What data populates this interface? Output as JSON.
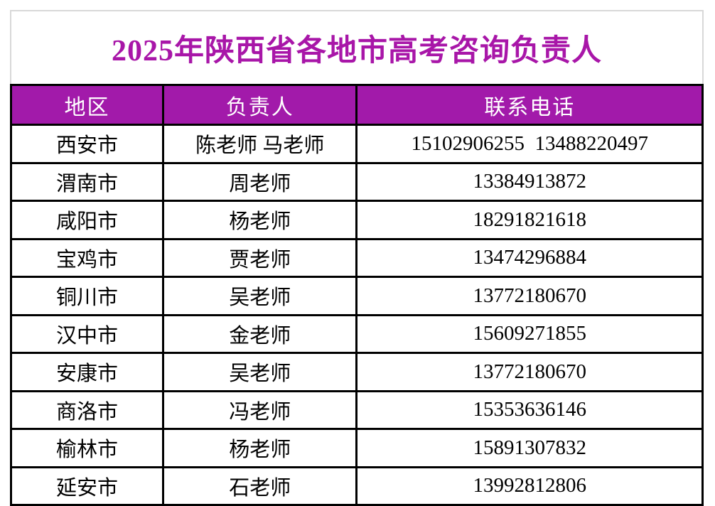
{
  "title": "2025年陕西省各地市高考咨询负责人",
  "colors": {
    "title_text": "#a816a8",
    "header_background": "#a21aaa",
    "header_text": "#ffffff",
    "grid_border": "#000000",
    "title_border": "#d8d8d8",
    "page_background": "#ffffff"
  },
  "table": {
    "columns": [
      {
        "key": "region",
        "label": "地区"
      },
      {
        "key": "person",
        "label": "负责人"
      },
      {
        "key": "phone",
        "label": "联系电话"
      }
    ],
    "rows": [
      {
        "region": "西安市",
        "person": "陈老师 马老师",
        "phone": "15102906255  13488220497"
      },
      {
        "region": "渭南市",
        "person": "周老师",
        "phone": "13384913872"
      },
      {
        "region": "咸阳市",
        "person": "杨老师",
        "phone": "18291821618"
      },
      {
        "region": "宝鸡市",
        "person": "贾老师",
        "phone": "13474296884"
      },
      {
        "region": "铜川市",
        "person": "吴老师",
        "phone": "13772180670"
      },
      {
        "region": "汉中市",
        "person": "金老师",
        "phone": "15609271855"
      },
      {
        "region": "安康市",
        "person": "吴老师",
        "phone": "13772180670"
      },
      {
        "region": "商洛市",
        "person": "冯老师",
        "phone": "15353636146"
      },
      {
        "region": "榆林市",
        "person": "杨老师",
        "phone": "15891307832"
      },
      {
        "region": "延安市",
        "person": "石老师",
        "phone": "13992812806"
      }
    ]
  }
}
